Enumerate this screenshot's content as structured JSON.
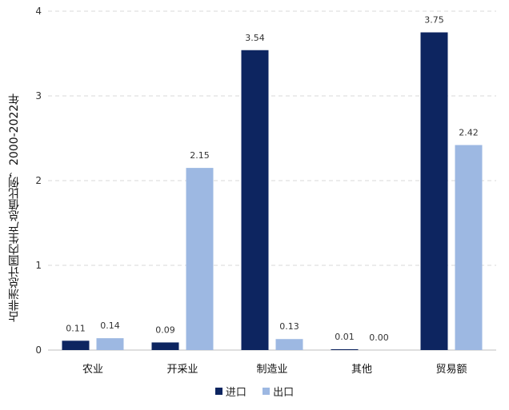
{
  "chart_data": {
    "type": "bar",
    "ylabel": "占非洲总计国内生产总值比例，2000-2022年",
    "ylim": [
      0,
      4
    ],
    "yticks": [
      0,
      1,
      2,
      3,
      4
    ],
    "grid": true,
    "legend_position": "bottom",
    "categories": [
      "农业",
      "开采业",
      "制造业",
      "其他",
      "贸易额"
    ],
    "series": [
      {
        "name": "进口",
        "color": "#0d2560",
        "values": [
          0.11,
          0.09,
          3.54,
          0.01,
          3.75
        ],
        "labels": [
          "0.11",
          "0.09",
          "3.54",
          "0.01",
          "3.75"
        ]
      },
      {
        "name": "出口",
        "color": "#9db8e2",
        "values": [
          0.14,
          2.15,
          0.13,
          0.0,
          2.42
        ],
        "labels": [
          "0.14",
          "2.15",
          "0.13",
          "0.00",
          "2.42"
        ]
      }
    ]
  }
}
